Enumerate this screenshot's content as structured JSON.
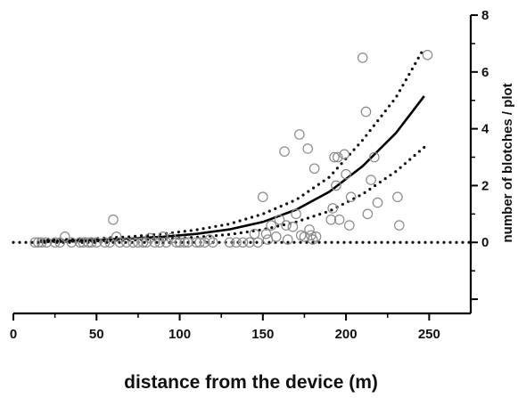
{
  "chart_data": {
    "type": "scatter",
    "title": "",
    "xlabel": "distance from the device (m)",
    "ylabel": "number of blotches / plot",
    "xlim": [
      0,
      275
    ],
    "ylim": [
      -2.5,
      8
    ],
    "x_ticks": [
      0,
      50,
      100,
      150,
      200,
      250
    ],
    "y_ticks": [
      -2,
      0,
      2,
      4,
      6,
      8
    ],
    "x_tick_labels": [
      "0",
      "50",
      "100",
      "150",
      "200",
      "250"
    ],
    "y_tick_labels": [
      "",
      "0",
      "2",
      "4",
      "6",
      "8"
    ],
    "y_axis_position": "right",
    "grid": false,
    "legend": "none",
    "marker": "open-circle",
    "points": [
      [
        13,
        0
      ],
      [
        15,
        0
      ],
      [
        17,
        0
      ],
      [
        20,
        0
      ],
      [
        25,
        0
      ],
      [
        28,
        0
      ],
      [
        31,
        0.2
      ],
      [
        35,
        0
      ],
      [
        40,
        0
      ],
      [
        42,
        0
      ],
      [
        45,
        0
      ],
      [
        47,
        0
      ],
      [
        50,
        0
      ],
      [
        55,
        0
      ],
      [
        58,
        0
      ],
      [
        60,
        0.8
      ],
      [
        62,
        0.2
      ],
      [
        64,
        0
      ],
      [
        68,
        0
      ],
      [
        72,
        0
      ],
      [
        75,
        0
      ],
      [
        78,
        0
      ],
      [
        80,
        0
      ],
      [
        82,
        0.15
      ],
      [
        85,
        0
      ],
      [
        88,
        0
      ],
      [
        90,
        0.2
      ],
      [
        92,
        0
      ],
      [
        95,
        0.15
      ],
      [
        98,
        0
      ],
      [
        100,
        0
      ],
      [
        103,
        0
      ],
      [
        105,
        0
      ],
      [
        110,
        0
      ],
      [
        112,
        0
      ],
      [
        115,
        0
      ],
      [
        118,
        0.1
      ],
      [
        120,
        0
      ],
      [
        130,
        0
      ],
      [
        134,
        0
      ],
      [
        138,
        0
      ],
      [
        142,
        0
      ],
      [
        145,
        0.3
      ],
      [
        147,
        0
      ],
      [
        150,
        1.6
      ],
      [
        152,
        0.3
      ],
      [
        153,
        0.1
      ],
      [
        155,
        0.6
      ],
      [
        158,
        0.2
      ],
      [
        160,
        0.8
      ],
      [
        163,
        3.2
      ],
      [
        164,
        0.6
      ],
      [
        165,
        0.1
      ],
      [
        168,
        0.55
      ],
      [
        170,
        1
      ],
      [
        172,
        3.8
      ],
      [
        173,
        0.25
      ],
      [
        175,
        0.2
      ],
      [
        177,
        3.3
      ],
      [
        178,
        0.45
      ],
      [
        179,
        0.25
      ],
      [
        180,
        0.1
      ],
      [
        181,
        2.6
      ],
      [
        182,
        0.2
      ],
      [
        191,
        0.8
      ],
      [
        192,
        1.2
      ],
      [
        193,
        3
      ],
      [
        194,
        2
      ],
      [
        195,
        3
      ],
      [
        196,
        0.8
      ],
      [
        199,
        3.1
      ],
      [
        200,
        2.4
      ],
      [
        202,
        0.6
      ],
      [
        203,
        1.6
      ],
      [
        210,
        6.5
      ],
      [
        212,
        4.6
      ],
      [
        213,
        1
      ],
      [
        215,
        2.2
      ],
      [
        217,
        3
      ],
      [
        219,
        1.4
      ],
      [
        231,
        1.6
      ],
      [
        232,
        0.6
      ],
      [
        249,
        6.6
      ]
    ],
    "fit_curve": {
      "style": "solid",
      "x": [
        17,
        30,
        50,
        70,
        90,
        110,
        130,
        150,
        170,
        190,
        210,
        230,
        247
      ],
      "y": [
        0.05,
        0.06,
        0.09,
        0.14,
        0.2,
        0.3,
        0.46,
        0.72,
        1.15,
        1.78,
        2.68,
        3.85,
        5.15
      ]
    },
    "confidence_band": {
      "style": "dotted",
      "x": [
        17,
        30,
        50,
        70,
        90,
        110,
        130,
        150,
        170,
        190,
        210,
        230,
        247
      ],
      "upper": [
        0.08,
        0.1,
        0.14,
        0.2,
        0.3,
        0.44,
        0.65,
        1,
        1.5,
        2.3,
        3.6,
        5.1,
        6.85
      ],
      "lower": [
        0.02,
        0.03,
        0.05,
        0.08,
        0.12,
        0.18,
        0.28,
        0.45,
        0.72,
        1.1,
        1.7,
        2.5,
        3.35
      ]
    },
    "reference_line": {
      "style": "dotted",
      "y": 0
    }
  }
}
